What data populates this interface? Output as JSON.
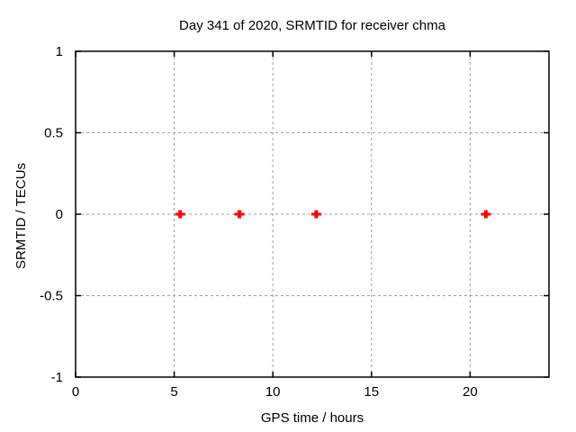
{
  "chart_data": {
    "type": "scatter",
    "title": "Day 341 of 2020, SRMTID for receiver chma",
    "xlabel": "GPS time / hours",
    "ylabel": "SRMTID / TECUs",
    "xlim": [
      0,
      24
    ],
    "ylim": [
      -1,
      1
    ],
    "xticks": [
      0,
      5,
      10,
      15,
      20
    ],
    "yticks": [
      -1,
      -0.5,
      0,
      0.5,
      1
    ],
    "grid": true,
    "legend": "none",
    "background": "#ffffff",
    "colors": {
      "marker": "#ff0000",
      "grid": "#a0a0a0",
      "border": "#000000",
      "text": "#000000"
    },
    "series": [
      {
        "name": "SRMTID",
        "marker": "plus",
        "color": "#ff0000",
        "points": [
          {
            "x": 5.3,
            "y": 0
          },
          {
            "x": 8.3,
            "y": 0
          },
          {
            "x": 12.2,
            "y": 0
          },
          {
            "x": 20.8,
            "y": 0
          }
        ]
      }
    ]
  }
}
